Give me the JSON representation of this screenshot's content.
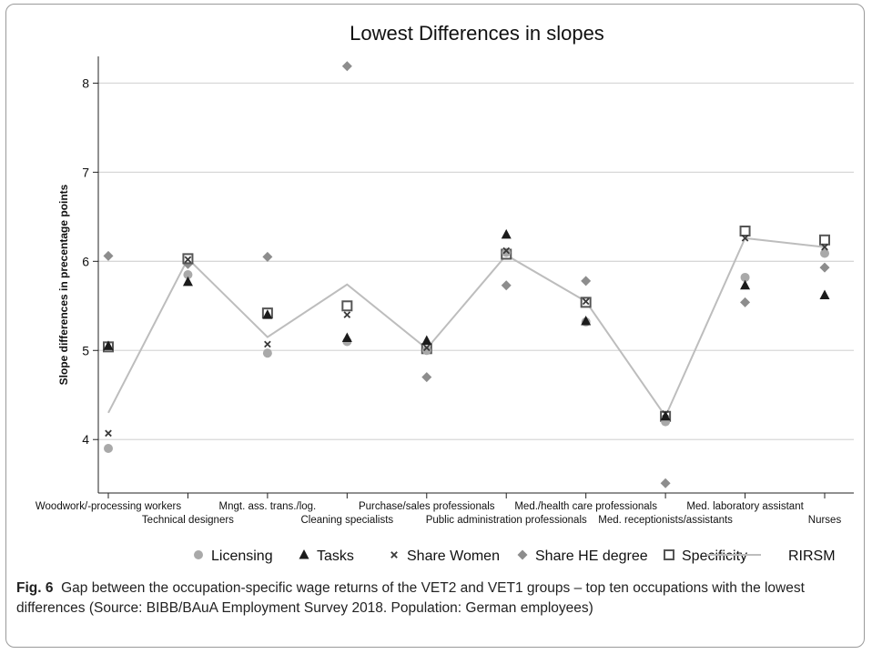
{
  "chart_data": {
    "type": "scatter",
    "title": "Lowest Differences in slopes",
    "ylabel": "Slope differences in precentage points",
    "xlabel": "",
    "ylim": [
      3.4,
      8.3
    ],
    "yticks": [
      4,
      5,
      6,
      7,
      8
    ],
    "grid": true,
    "legend_position": "bottom",
    "categories": [
      "Woodwork/-processing workers",
      "Technical designers",
      "Mngt. ass. trans./log.",
      "Cleaning specialists",
      "Purchase/sales professionals",
      "Public administration professionals",
      "Med./health care professionals",
      "Med. receptionists/assistants",
      "Med. laboratory assistant",
      "Nurses"
    ],
    "series": [
      {
        "name": "Licensing",
        "marker": "circle",
        "values": [
          3.9,
          5.85,
          4.97,
          5.1,
          5.0,
          6.1,
          5.32,
          4.2,
          5.82,
          6.09
        ]
      },
      {
        "name": "Tasks",
        "marker": "triangle",
        "values": [
          5.05,
          5.77,
          5.4,
          5.14,
          5.11,
          6.3,
          5.33,
          4.26,
          5.73,
          5.62
        ]
      },
      {
        "name": "Share Women",
        "marker": "x",
        "values": [
          4.07,
          6.02,
          5.07,
          5.4,
          5.03,
          6.12,
          5.55,
          4.29,
          6.26,
          6.16
        ]
      },
      {
        "name": "Share HE degree",
        "marker": "diamond",
        "values": [
          6.06,
          5.97,
          6.05,
          8.19,
          4.7,
          5.73,
          5.78,
          3.51,
          5.54,
          5.93
        ]
      },
      {
        "name": "Specificity",
        "marker": "square",
        "values": [
          5.04,
          6.03,
          5.42,
          5.5,
          5.02,
          6.08,
          5.54,
          4.26,
          6.34,
          6.24
        ]
      },
      {
        "name": "RIRSM",
        "marker": "line",
        "values": [
          4.3,
          6.03,
          5.15,
          5.74,
          5.02,
          6.07,
          5.55,
          4.26,
          6.26,
          6.16
        ]
      }
    ],
    "colors": {
      "circle": "#a9a9a9",
      "triangle": "#1b1b1b",
      "x": "#3a3a3a",
      "diamond": "#8d8d8d",
      "square": "#555555",
      "line": "#bdbdbd",
      "grid": "#d8d8d8"
    }
  },
  "caption": {
    "label": "Fig. 6",
    "text": "Gap between the occupation-specific wage returns of the VET2 and VET1 groups – top ten occupations with the lowest differences  (Source: BIBB/BAuA Employment Survey 2018. Population: German employees)"
  }
}
